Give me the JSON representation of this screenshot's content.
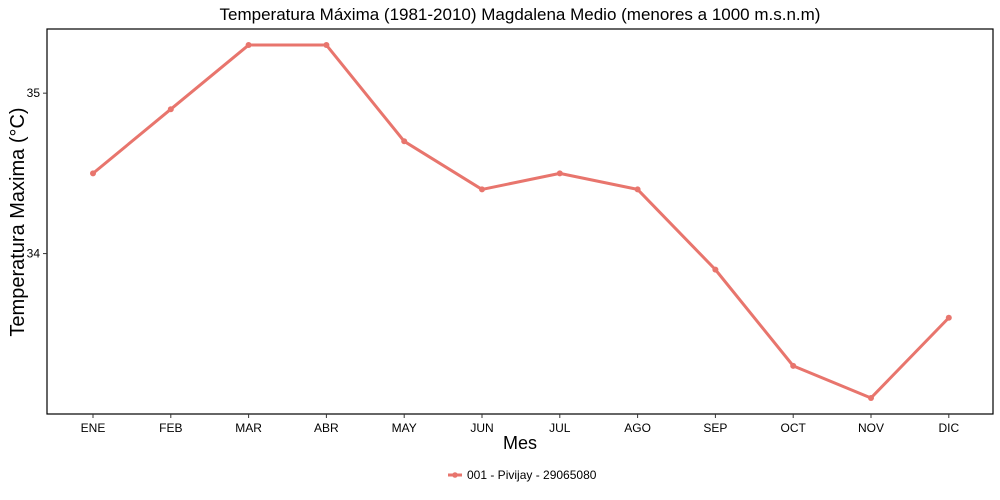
{
  "chart_data": {
    "type": "line",
    "title": "Temperatura Máxima (1981-2010) Magdalena Medio (menores a 1000 m.s.n.m)",
    "xlabel": "Mes",
    "ylabel": "Temperatura Maxima (°C)",
    "categories": [
      "ENE",
      "FEB",
      "MAR",
      "ABR",
      "MAY",
      "JUN",
      "JUL",
      "AGO",
      "SEP",
      "OCT",
      "NOV",
      "DIC"
    ],
    "series": [
      {
        "name": "001 - Pivijay - 29065080",
        "color": "#e8756d",
        "values": [
          34.5,
          34.9,
          35.3,
          35.3,
          34.7,
          34.4,
          34.5,
          34.4,
          33.9,
          33.3,
          33.1,
          33.6
        ]
      }
    ],
    "yticks": [
      34,
      35
    ],
    "ylim": [
      33.0,
      35.4
    ],
    "grid": false,
    "legend_position": "bottom"
  }
}
